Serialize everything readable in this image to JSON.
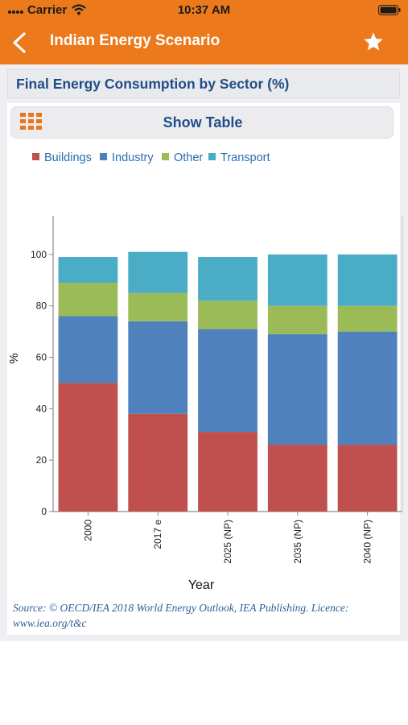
{
  "status_bar": {
    "carrier": "Carrier",
    "time": "10:37 AM",
    "icons": [
      "signal-icon",
      "wifi-icon",
      "battery-icon"
    ]
  },
  "nav": {
    "title": "Indian Energy Scenario",
    "back_icon": "back-chevron-icon",
    "favorite_icon": "star-icon",
    "bar_color": "#ec7a1c"
  },
  "section": {
    "title": "Final Energy Consumption by Sector (%)"
  },
  "table_toggle": {
    "label": "Show Table",
    "icon": "grid-icon"
  },
  "chart_data": {
    "type": "bar",
    "stacked": true,
    "categories": [
      "2000",
      "2017 e",
      "2025 (NP)",
      "2035 (NP)",
      "2040 (NP)"
    ],
    "series": [
      {
        "name": "Buildings",
        "color": "#c0504d",
        "values": [
          50,
          38,
          31,
          26,
          26
        ]
      },
      {
        "name": "Industry",
        "color": "#4f81bd",
        "values": [
          26,
          36,
          40,
          43,
          44
        ]
      },
      {
        "name": "Other",
        "color": "#9bbb59",
        "values": [
          13,
          11,
          11,
          11,
          10
        ]
      },
      {
        "name": "Transport",
        "color": "#4bacc6",
        "values": [
          10,
          16,
          17,
          20,
          20
        ]
      }
    ],
    "xlabel": "Year",
    "ylabel": "%",
    "ylim": [
      0,
      115
    ],
    "yticks": [
      0,
      20,
      40,
      60,
      80,
      100
    ],
    "legend_position": "top-left",
    "grid": false
  },
  "source": "Source: © OECD/IEA 2018 World Energy Outlook, IEA Publishing. Licence: www.iea.org/t&c"
}
